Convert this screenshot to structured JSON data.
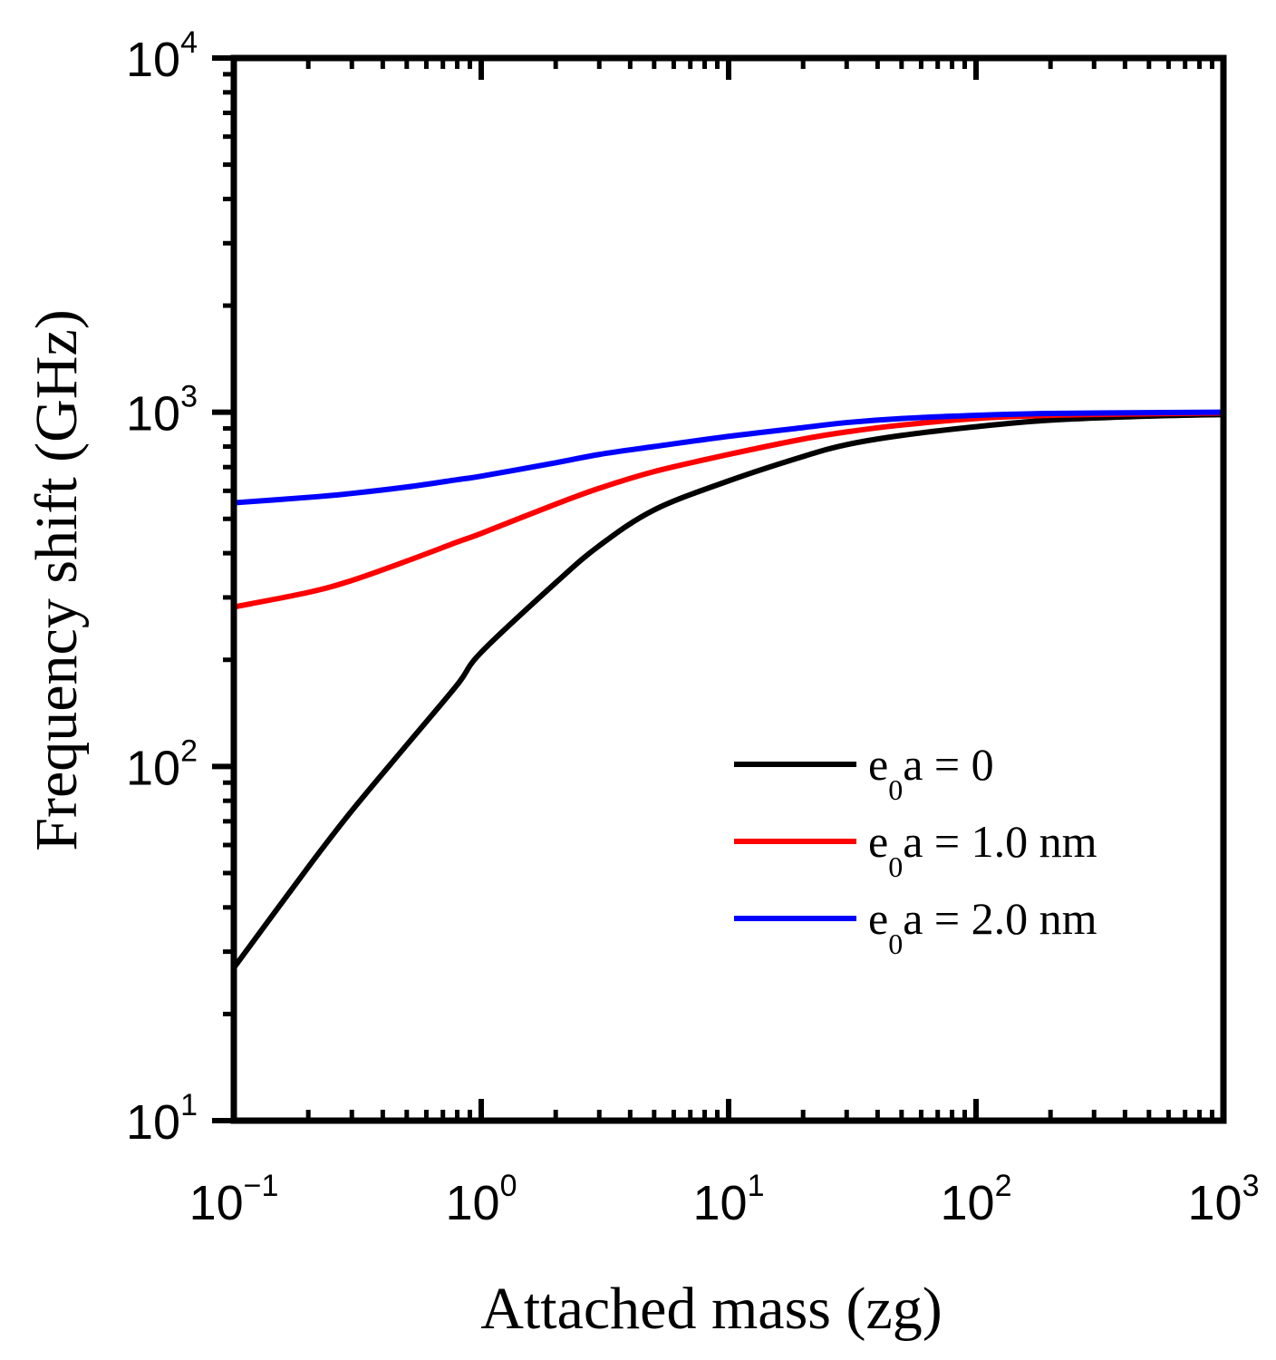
{
  "chart_data": {
    "type": "line",
    "xlabel": "Attached mass (zg)",
    "ylabel": "Frequency shift (GHz)",
    "xscale": "log",
    "yscale": "log",
    "xlim": [
      0.1,
      1000
    ],
    "ylim": [
      10,
      10000
    ],
    "x_ticks": [
      {
        "base": "10",
        "exp": "−1",
        "value": 0.1
      },
      {
        "base": "10",
        "exp": "0",
        "value": 1
      },
      {
        "base": "10",
        "exp": "1",
        "value": 10
      },
      {
        "base": "10",
        "exp": "2",
        "value": 100
      },
      {
        "base": "10",
        "exp": "3",
        "value": 1000
      }
    ],
    "y_ticks": [
      {
        "base": "10",
        "exp": "1",
        "value": 10
      },
      {
        "base": "10",
        "exp": "2",
        "value": 100
      },
      {
        "base": "10",
        "exp": "3",
        "value": 1000
      },
      {
        "base": "10",
        "exp": "4",
        "value": 10000
      }
    ],
    "x": [
      0.1,
      0.2,
      0.3,
      0.5,
      0.8,
      1,
      2,
      3,
      5,
      10,
      20,
      30,
      50,
      100,
      200,
      500,
      1000
    ],
    "series": [
      {
        "name_prefix": "e",
        "name_sub": "0",
        "name_suffix": "a = 0",
        "color": "#000000",
        "values": [
          27,
          52,
          75,
          115,
          170,
          210,
          330,
          420,
          530,
          640,
          750,
          810,
          860,
          910,
          950,
          975,
          985
        ]
      },
      {
        "name_prefix": "e",
        "name_sub": "0",
        "name_suffix": "a = 1.0 nm",
        "color": "#ff0000",
        "values": [
          282,
          310,
          335,
          380,
          430,
          455,
          550,
          610,
          680,
          760,
          840,
          880,
          920,
          960,
          980,
          990,
          995
        ]
      },
      {
        "name_prefix": "e",
        "name_sub": "0",
        "name_suffix": "a = 2.0 nm",
        "color": "#0000ff",
        "values": [
          555,
          575,
          590,
          615,
          645,
          660,
          720,
          760,
          800,
          855,
          905,
          935,
          960,
          980,
          992,
          997,
          1000
        ]
      }
    ],
    "legend_position": "lower-right",
    "grid": false
  }
}
